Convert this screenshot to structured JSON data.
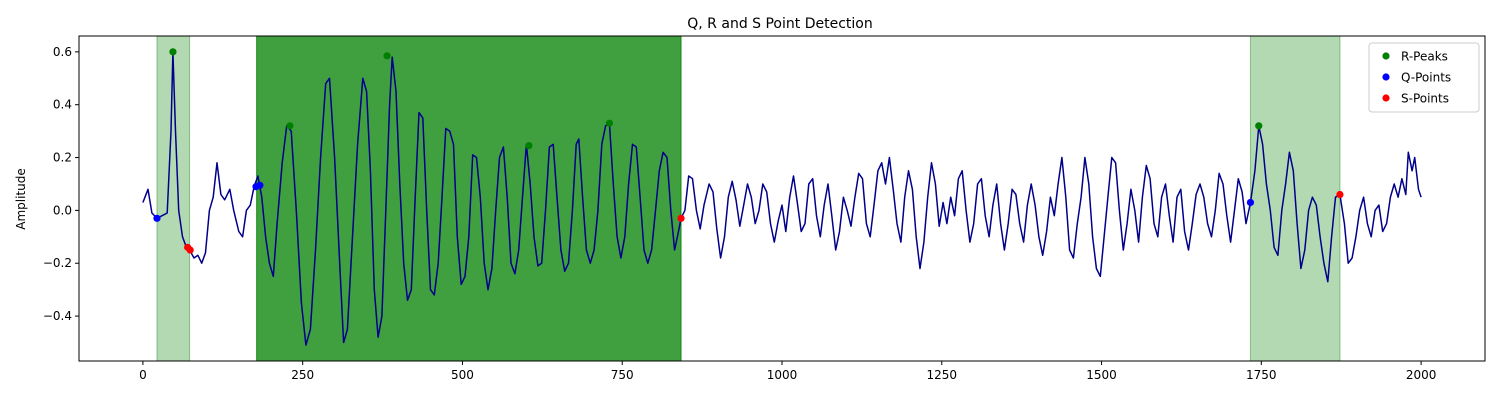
{
  "chart_data": {
    "type": "line",
    "title": "Q, R and S Point Detection",
    "xlabel": "",
    "ylabel": "Amplitude",
    "xlim": [
      -100,
      2100
    ],
    "ylim": [
      -0.57,
      0.66
    ],
    "xticks": [
      0,
      250,
      500,
      750,
      1000,
      1250,
      1500,
      1750,
      2000
    ],
    "yticks": [
      -0.4,
      -0.2,
      0.0,
      0.2,
      0.4,
      0.6
    ],
    "xtick_labels": [
      "0",
      "250",
      "500",
      "750",
      "1000",
      "1250",
      "1500",
      "1750",
      "2000"
    ],
    "ytick_labels": [
      "−0.4",
      "−0.2",
      "0.0",
      "0.2",
      "0.4",
      "0.6"
    ],
    "grid": false,
    "legend": {
      "placement": "top-right",
      "entries": [
        {
          "label": "R-Peaks",
          "color": "#008000"
        },
        {
          "label": "Q-Points",
          "color": "#0000ff"
        },
        {
          "label": "S-Points",
          "color": "#ff0000"
        }
      ]
    },
    "shaded_regions": [
      {
        "x0": 22,
        "x1": 73,
        "color": "#008000",
        "opacity": 0.3
      },
      {
        "x0": 178,
        "x1": 842,
        "color": "#008000",
        "opacity": 0.75
      },
      {
        "x0": 1733,
        "x1": 1873,
        "color": "#008000",
        "opacity": 0.3
      }
    ],
    "signal": {
      "color": "#00008b",
      "points": [
        [
          0,
          0.03
        ],
        [
          8,
          0.08
        ],
        [
          14,
          -0.01
        ],
        [
          22,
          -0.03
        ],
        [
          30,
          -0.02
        ],
        [
          38,
          -0.01
        ],
        [
          44,
          0.3
        ],
        [
          47,
          0.6
        ],
        [
          51,
          0.3
        ],
        [
          56,
          0.0
        ],
        [
          62,
          -0.1
        ],
        [
          68,
          -0.14
        ],
        [
          73,
          -0.15
        ],
        [
          80,
          -0.18
        ],
        [
          86,
          -0.17
        ],
        [
          92,
          -0.2
        ],
        [
          98,
          -0.16
        ],
        [
          104,
          0.0
        ],
        [
          110,
          0.05
        ],
        [
          116,
          0.18
        ],
        [
          122,
          0.06
        ],
        [
          128,
          0.04
        ],
        [
          136,
          0.08
        ],
        [
          142,
          0.0
        ],
        [
          150,
          -0.08
        ],
        [
          156,
          -0.1
        ],
        [
          162,
          0.0
        ],
        [
          168,
          0.02
        ],
        [
          174,
          0.09
        ],
        [
          180,
          0.13
        ],
        [
          186,
          0.05
        ],
        [
          192,
          -0.1
        ],
        [
          198,
          -0.2
        ],
        [
          204,
          -0.25
        ],
        [
          210,
          -0.05
        ],
        [
          218,
          0.18
        ],
        [
          225,
          0.32
        ],
        [
          232,
          0.3
        ],
        [
          240,
          0.0
        ],
        [
          248,
          -0.35
        ],
        [
          255,
          -0.51
        ],
        [
          262,
          -0.45
        ],
        [
          270,
          -0.15
        ],
        [
          278,
          0.2
        ],
        [
          286,
          0.48
        ],
        [
          292,
          0.5
        ],
        [
          300,
          0.2
        ],
        [
          308,
          -0.2
        ],
        [
          314,
          -0.5
        ],
        [
          320,
          -0.45
        ],
        [
          328,
          -0.1
        ],
        [
          336,
          0.25
        ],
        [
          344,
          0.5
        ],
        [
          350,
          0.45
        ],
        [
          356,
          0.15
        ],
        [
          362,
          -0.3
        ],
        [
          368,
          -0.48
        ],
        [
          374,
          -0.4
        ],
        [
          380,
          0.0
        ],
        [
          386,
          0.4
        ],
        [
          390,
          0.58
        ],
        [
          396,
          0.45
        ],
        [
          402,
          0.1
        ],
        [
          408,
          -0.2
        ],
        [
          414,
          -0.34
        ],
        [
          420,
          -0.3
        ],
        [
          426,
          0.05
        ],
        [
          432,
          0.37
        ],
        [
          438,
          0.35
        ],
        [
          444,
          0.0
        ],
        [
          450,
          -0.3
        ],
        [
          456,
          -0.32
        ],
        [
          462,
          -0.2
        ],
        [
          468,
          0.05
        ],
        [
          474,
          0.31
        ],
        [
          480,
          0.3
        ],
        [
          486,
          0.25
        ],
        [
          492,
          -0.1
        ],
        [
          498,
          -0.28
        ],
        [
          504,
          -0.25
        ],
        [
          510,
          -0.1
        ],
        [
          516,
          0.21
        ],
        [
          522,
          0.2
        ],
        [
          528,
          0.05
        ],
        [
          534,
          -0.2
        ],
        [
          540,
          -0.3
        ],
        [
          546,
          -0.22
        ],
        [
          552,
          0.0
        ],
        [
          558,
          0.2
        ],
        [
          564,
          0.24
        ],
        [
          570,
          0.05
        ],
        [
          576,
          -0.2
        ],
        [
          582,
          -0.24
        ],
        [
          588,
          -0.15
        ],
        [
          594,
          0.05
        ],
        [
          600,
          0.25
        ],
        [
          606,
          0.1
        ],
        [
          612,
          -0.1
        ],
        [
          618,
          -0.21
        ],
        [
          624,
          -0.2
        ],
        [
          630,
          0.0
        ],
        [
          636,
          0.24
        ],
        [
          642,
          0.25
        ],
        [
          648,
          0.05
        ],
        [
          654,
          -0.15
        ],
        [
          660,
          -0.23
        ],
        [
          666,
          -0.2
        ],
        [
          672,
          0.0
        ],
        [
          678,
          0.25
        ],
        [
          682,
          0.27
        ],
        [
          688,
          0.05
        ],
        [
          694,
          -0.15
        ],
        [
          700,
          -0.2
        ],
        [
          706,
          -0.15
        ],
        [
          712,
          0.0
        ],
        [
          718,
          0.25
        ],
        [
          724,
          0.32
        ],
        [
          730,
          0.33
        ],
        [
          736,
          0.1
        ],
        [
          742,
          -0.1
        ],
        [
          748,
          -0.18
        ],
        [
          754,
          -0.1
        ],
        [
          760,
          0.1
        ],
        [
          766,
          0.25
        ],
        [
          772,
          0.24
        ],
        [
          778,
          0.05
        ],
        [
          784,
          -0.15
        ],
        [
          790,
          -0.2
        ],
        [
          796,
          -0.15
        ],
        [
          802,
          0.0
        ],
        [
          808,
          0.15
        ],
        [
          814,
          0.22
        ],
        [
          820,
          0.2
        ],
        [
          826,
          0.0
        ],
        [
          832,
          -0.15
        ],
        [
          838,
          -0.08
        ],
        [
          842,
          -0.03
        ],
        [
          848,
          0.0
        ],
        [
          854,
          0.13
        ],
        [
          860,
          0.12
        ],
        [
          866,
          0.0
        ],
        [
          872,
          -0.07
        ],
        [
          878,
          0.02
        ],
        [
          886,
          0.1
        ],
        [
          892,
          0.07
        ],
        [
          898,
          -0.07
        ],
        [
          904,
          -0.18
        ],
        [
          910,
          -0.1
        ],
        [
          916,
          0.05
        ],
        [
          922,
          0.11
        ],
        [
          928,
          0.04
        ],
        [
          934,
          -0.06
        ],
        [
          940,
          0.02
        ],
        [
          946,
          0.1
        ],
        [
          952,
          0.05
        ],
        [
          958,
          -0.05
        ],
        [
          964,
          0.0
        ],
        [
          970,
          0.1
        ],
        [
          976,
          0.07
        ],
        [
          982,
          -0.05
        ],
        [
          988,
          -0.12
        ],
        [
          994,
          -0.04
        ],
        [
          1000,
          0.02
        ],
        [
          1006,
          -0.08
        ],
        [
          1012,
          0.05
        ],
        [
          1018,
          0.13
        ],
        [
          1024,
          0.03
        ],
        [
          1030,
          -0.08
        ],
        [
          1036,
          -0.05
        ],
        [
          1042,
          0.1
        ],
        [
          1048,
          0.12
        ],
        [
          1054,
          -0.02
        ],
        [
          1060,
          -0.1
        ],
        [
          1066,
          0.02
        ],
        [
          1072,
          0.1
        ],
        [
          1078,
          -0.02
        ],
        [
          1084,
          -0.15
        ],
        [
          1090,
          -0.08
        ],
        [
          1096,
          0.05
        ],
        [
          1102,
          0.0
        ],
        [
          1108,
          -0.06
        ],
        [
          1114,
          0.05
        ],
        [
          1120,
          0.14
        ],
        [
          1126,
          0.12
        ],
        [
          1132,
          -0.05
        ],
        [
          1138,
          -0.1
        ],
        [
          1144,
          0.02
        ],
        [
          1150,
          0.15
        ],
        [
          1156,
          0.18
        ],
        [
          1162,
          0.1
        ],
        [
          1168,
          0.2
        ],
        [
          1174,
          0.08
        ],
        [
          1180,
          -0.05
        ],
        [
          1186,
          -0.12
        ],
        [
          1192,
          0.05
        ],
        [
          1198,
          0.15
        ],
        [
          1204,
          0.08
        ],
        [
          1210,
          -0.1
        ],
        [
          1216,
          -0.22
        ],
        [
          1222,
          -0.12
        ],
        [
          1228,
          0.05
        ],
        [
          1234,
          0.18
        ],
        [
          1240,
          0.1
        ],
        [
          1246,
          -0.06
        ],
        [
          1252,
          0.03
        ],
        [
          1258,
          -0.05
        ],
        [
          1264,
          0.05
        ],
        [
          1270,
          -0.02
        ],
        [
          1276,
          0.12
        ],
        [
          1282,
          0.15
        ],
        [
          1288,
          0.0
        ],
        [
          1294,
          -0.12
        ],
        [
          1300,
          -0.05
        ],
        [
          1306,
          0.1
        ],
        [
          1312,
          0.12
        ],
        [
          1318,
          -0.02
        ],
        [
          1324,
          -0.1
        ],
        [
          1330,
          0.02
        ],
        [
          1336,
          0.1
        ],
        [
          1342,
          -0.05
        ],
        [
          1348,
          -0.15
        ],
        [
          1354,
          -0.05
        ],
        [
          1360,
          0.08
        ],
        [
          1366,
          0.06
        ],
        [
          1372,
          -0.05
        ],
        [
          1378,
          -0.12
        ],
        [
          1384,
          0.02
        ],
        [
          1390,
          0.1
        ],
        [
          1396,
          0.02
        ],
        [
          1402,
          -0.1
        ],
        [
          1408,
          -0.17
        ],
        [
          1414,
          -0.08
        ],
        [
          1420,
          0.05
        ],
        [
          1426,
          -0.02
        ],
        [
          1432,
          0.1
        ],
        [
          1438,
          0.2
        ],
        [
          1444,
          0.05
        ],
        [
          1450,
          -0.15
        ],
        [
          1456,
          -0.18
        ],
        [
          1462,
          -0.05
        ],
        [
          1468,
          0.05
        ],
        [
          1474,
          0.2
        ],
        [
          1480,
          0.1
        ],
        [
          1486,
          -0.1
        ],
        [
          1492,
          -0.22
        ],
        [
          1498,
          -0.25
        ],
        [
          1504,
          -0.1
        ],
        [
          1510,
          0.05
        ],
        [
          1516,
          0.2
        ],
        [
          1522,
          0.18
        ],
        [
          1528,
          0.0
        ],
        [
          1534,
          -0.15
        ],
        [
          1540,
          -0.05
        ],
        [
          1546,
          0.08
        ],
        [
          1552,
          0.0
        ],
        [
          1558,
          -0.12
        ],
        [
          1564,
          0.05
        ],
        [
          1570,
          0.17
        ],
        [
          1576,
          0.12
        ],
        [
          1582,
          -0.05
        ],
        [
          1588,
          -0.1
        ],
        [
          1594,
          0.05
        ],
        [
          1600,
          0.1
        ],
        [
          1606,
          -0.02
        ],
        [
          1612,
          -0.12
        ],
        [
          1618,
          0.05
        ],
        [
          1624,
          0.08
        ],
        [
          1630,
          -0.08
        ],
        [
          1636,
          -0.15
        ],
        [
          1642,
          -0.05
        ],
        [
          1648,
          0.06
        ],
        [
          1654,
          0.1
        ],
        [
          1660,
          0.05
        ],
        [
          1666,
          -0.05
        ],
        [
          1672,
          -0.1
        ],
        [
          1678,
          0.0
        ],
        [
          1684,
          0.14
        ],
        [
          1690,
          0.1
        ],
        [
          1696,
          -0.02
        ],
        [
          1702,
          -0.12
        ],
        [
          1708,
          0.0
        ],
        [
          1714,
          0.12
        ],
        [
          1720,
          0.07
        ],
        [
          1726,
          -0.05
        ],
        [
          1733,
          0.03
        ],
        [
          1740,
          0.15
        ],
        [
          1746,
          0.32
        ],
        [
          1752,
          0.25
        ],
        [
          1758,
          0.1
        ],
        [
          1764,
          0.0
        ],
        [
          1770,
          -0.14
        ],
        [
          1776,
          -0.17
        ],
        [
          1782,
          0.0
        ],
        [
          1788,
          0.1
        ],
        [
          1794,
          0.22
        ],
        [
          1800,
          0.15
        ],
        [
          1806,
          -0.05
        ],
        [
          1812,
          -0.22
        ],
        [
          1818,
          -0.15
        ],
        [
          1824,
          0.0
        ],
        [
          1830,
          0.05
        ],
        [
          1836,
          0.02
        ],
        [
          1842,
          -0.1
        ],
        [
          1848,
          -0.2
        ],
        [
          1854,
          -0.27
        ],
        [
          1860,
          -0.1
        ],
        [
          1866,
          0.05
        ],
        [
          1873,
          0.06
        ],
        [
          1880,
          -0.05
        ],
        [
          1886,
          -0.2
        ],
        [
          1892,
          -0.18
        ],
        [
          1898,
          -0.1
        ],
        [
          1904,
          0.0
        ],
        [
          1910,
          0.05
        ],
        [
          1916,
          -0.05
        ],
        [
          1922,
          -0.1
        ],
        [
          1928,
          0.0
        ],
        [
          1934,
          0.02
        ],
        [
          1940,
          -0.08
        ],
        [
          1946,
          -0.05
        ],
        [
          1952,
          0.05
        ],
        [
          1958,
          0.1
        ],
        [
          1964,
          0.05
        ],
        [
          1970,
          0.12
        ],
        [
          1976,
          0.06
        ],
        [
          1980,
          0.22
        ],
        [
          1986,
          0.15
        ],
        [
          1990,
          0.2
        ],
        [
          1996,
          0.08
        ],
        [
          2000,
          0.05
        ]
      ]
    },
    "r_peaks": [
      [
        47,
        0.6
      ],
      [
        230,
        0.32
      ],
      [
        382,
        0.585
      ],
      [
        604,
        0.245
      ],
      [
        730,
        0.33
      ],
      [
        1746,
        0.32
      ]
    ],
    "q_points": [
      [
        22,
        -0.03
      ],
      [
        177,
        0.09
      ],
      [
        183,
        0.095
      ],
      [
        1733,
        0.03
      ]
    ],
    "s_points": [
      [
        70,
        -0.14
      ],
      [
        74,
        -0.15
      ],
      [
        842,
        -0.03
      ],
      [
        1873,
        0.06
      ]
    ]
  }
}
